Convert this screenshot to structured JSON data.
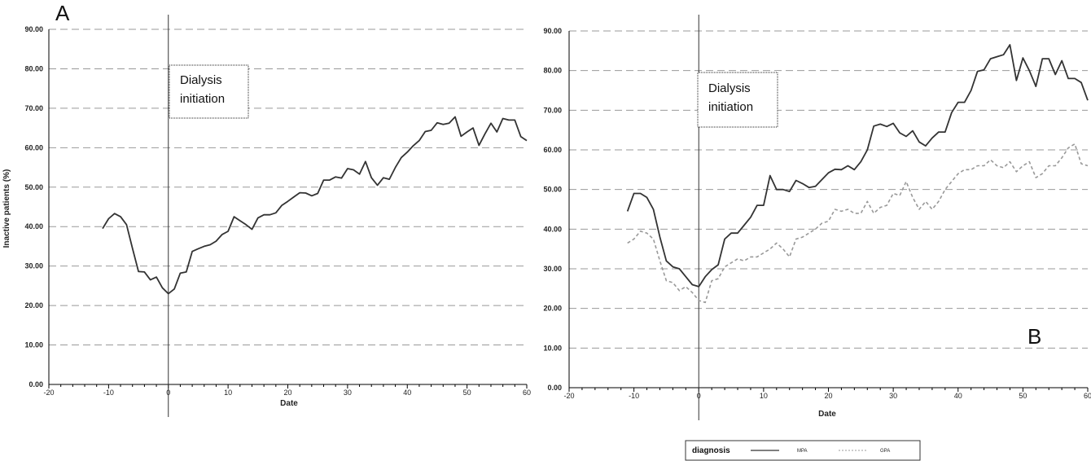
{
  "chart_data": [
    {
      "type": "line",
      "panel_label": "A",
      "xlabel": "Date",
      "ylabel": "Inactive patients (%)",
      "xlim": [
        -20,
        60
      ],
      "ylim": [
        0,
        90
      ],
      "x_ticks": [
        -20,
        -10,
        0,
        10,
        20,
        30,
        40,
        50,
        60
      ],
      "y_ticks": [
        "0.00",
        "10.00",
        "20.00",
        "30.00",
        "40.00",
        "50.00",
        "60.00",
        "70.00",
        "80.00",
        "90.00"
      ],
      "grid": true,
      "vline_x": 0,
      "annotation": {
        "line1": "Dialysis",
        "line2": "initiation"
      },
      "series": [
        {
          "color": "#333333",
          "dash": "solid",
          "x": [
            -11,
            -10,
            -9,
            -8,
            -7,
            -6,
            -5,
            -4,
            -3,
            -2,
            -1,
            0,
            1,
            2,
            3,
            4,
            5,
            6,
            7,
            8,
            9,
            10,
            11,
            12,
            13,
            14,
            15,
            16,
            17,
            18,
            19,
            20,
            21,
            22,
            23,
            24,
            25,
            26,
            27,
            28,
            29,
            30,
            31,
            32,
            33,
            34,
            35,
            36,
            37,
            38,
            39,
            40,
            41,
            42,
            43,
            44,
            45,
            46,
            47,
            48,
            49,
            50,
            51,
            52,
            53,
            54,
            55,
            56,
            57,
            58,
            59,
            60
          ],
          "values": [
            39.5,
            42,
            43.3,
            42.5,
            40.5,
            34.5,
            28.6,
            28.5,
            26.5,
            27.2,
            24.5,
            23,
            24.2,
            28.2,
            28.5,
            33.7,
            34.4,
            35,
            35.4,
            36.3,
            38,
            38.8,
            42.5,
            41.5,
            40.5,
            39.3,
            42.2,
            43,
            43,
            43.5,
            45.4,
            46.4,
            47.5,
            48.6,
            48.5,
            47.8,
            48.4,
            51.8,
            51.8,
            52.6,
            52.3,
            54.7,
            54.4,
            53.3,
            56.5,
            52.4,
            50.5,
            52.4,
            52,
            55,
            57.5,
            58.9,
            60.5,
            61.8,
            64.1,
            64.4,
            66.3,
            65.9,
            66.2,
            67.8,
            62.9,
            64,
            65,
            60.6,
            63.5,
            66.2,
            64,
            67.4,
            67,
            67,
            62.8,
            61.8
          ]
        }
      ]
    },
    {
      "type": "line",
      "panel_label": "B",
      "xlabel": "Date",
      "xlim": [
        -20,
        60
      ],
      "ylim": [
        0,
        90
      ],
      "x_ticks": [
        -20,
        -10,
        0,
        10,
        20,
        30,
        40,
        50,
        60
      ],
      "y_ticks": [
        "0.00",
        "10.00",
        "20.00",
        "30.00",
        "40.00",
        "50.00",
        "60.00",
        "70.00",
        "80.00",
        "90.00"
      ],
      "grid": true,
      "vline_x": 0,
      "annotation": {
        "line1": "Dialysis",
        "line2": "initiation"
      },
      "legend": {
        "title": "diagnosis",
        "placement": "bottom"
      },
      "series": [
        {
          "name": "MPA",
          "color": "#333333",
          "dash": "solid",
          "x": [
            -11,
            -10,
            -9,
            -8,
            -7,
            -6,
            -5,
            -4,
            -3,
            -2,
            -1,
            0,
            1,
            2,
            3,
            4,
            5,
            6,
            7,
            8,
            9,
            10,
            11,
            12,
            13,
            14,
            15,
            16,
            17,
            18,
            19,
            20,
            21,
            22,
            23,
            24,
            25,
            26,
            27,
            28,
            29,
            30,
            31,
            32,
            33,
            34,
            35,
            36,
            37,
            38,
            39,
            40,
            41,
            42,
            43,
            44,
            45,
            46,
            47,
            48,
            49,
            50,
            51,
            52,
            53,
            54,
            55,
            56,
            57,
            58,
            59,
            60
          ],
          "values": [
            44.5,
            49,
            49,
            48,
            45,
            38,
            32,
            30.5,
            30,
            28,
            26,
            25.5,
            28,
            29.8,
            31,
            37.5,
            39,
            39,
            41,
            43,
            46,
            46,
            53.5,
            50,
            50,
            49.5,
            52.3,
            51.5,
            50.5,
            50.8,
            52.5,
            54.2,
            55.1,
            55,
            56,
            55,
            57,
            60,
            66,
            66.5,
            65.9,
            66.7,
            64.3,
            63.4,
            64.8,
            62,
            61,
            63,
            64.5,
            64.5,
            69.4,
            72,
            72,
            75,
            79.8,
            80.2,
            83,
            83.5,
            84,
            86.5,
            77.5,
            83.2,
            80,
            76,
            83,
            83,
            79,
            82.5,
            78,
            78,
            77,
            72.5
          ]
        },
        {
          "name": "GPA",
          "color": "#999999",
          "dash": "dashed",
          "x": [
            -11,
            -10,
            -9,
            -8,
            -7,
            -6,
            -5,
            -4,
            -3,
            -2,
            -1,
            0,
            1,
            2,
            3,
            4,
            5,
            6,
            7,
            8,
            9,
            10,
            11,
            12,
            13,
            14,
            15,
            16,
            17,
            18,
            19,
            20,
            21,
            22,
            23,
            24,
            25,
            26,
            27,
            28,
            29,
            30,
            31,
            32,
            33,
            34,
            35,
            36,
            37,
            38,
            39,
            40,
            41,
            42,
            43,
            44,
            45,
            46,
            47,
            48,
            49,
            50,
            51,
            52,
            53,
            54,
            55,
            56,
            57,
            58,
            59,
            60
          ],
          "values": [
            36.5,
            37.5,
            39.5,
            39,
            37.5,
            32,
            27,
            26.5,
            24.5,
            25.5,
            24,
            22,
            21.5,
            27,
            27.5,
            30.5,
            31.5,
            32.5,
            32,
            33,
            33,
            34,
            35,
            36.5,
            35,
            33,
            37.5,
            38,
            39,
            40,
            41.5,
            42,
            45,
            44.5,
            45,
            44,
            44,
            47,
            44,
            45.5,
            46,
            49,
            48.5,
            52,
            48,
            45,
            47,
            45,
            47,
            50,
            52,
            54,
            55,
            55,
            56,
            56,
            57.5,
            56,
            55.5,
            57,
            54.5,
            56,
            57,
            53,
            54,
            56,
            56,
            58,
            60.5,
            61.5,
            56.5,
            56
          ]
        }
      ]
    }
  ]
}
